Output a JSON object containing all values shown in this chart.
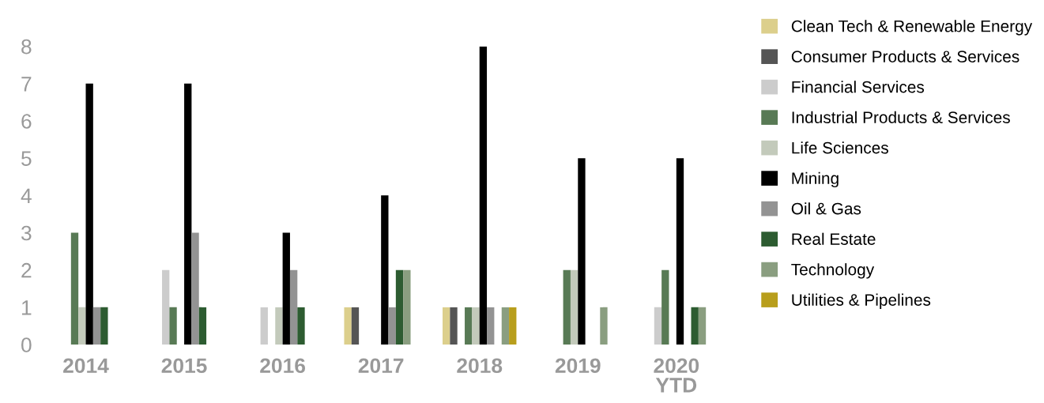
{
  "chart_data": {
    "type": "bar",
    "categories": [
      "2014",
      "2015",
      "2016",
      "2017",
      "2018",
      "2019",
      "2020\nYTD"
    ],
    "ylim": [
      0,
      8
    ],
    "yticks": [
      0,
      1,
      2,
      3,
      4,
      5,
      6,
      7,
      8
    ],
    "grid": false,
    "legend": "right",
    "series": [
      {
        "name": "Clean Tech & Renewable Energy",
        "color": "#dccf8c",
        "values": [
          0,
          0,
          0,
          1,
          1,
          0,
          0
        ]
      },
      {
        "name": "Consumer Products & Services",
        "color": "#555555",
        "values": [
          0,
          0,
          0,
          1,
          1,
          0,
          0
        ]
      },
      {
        "name": "Financial Services",
        "color": "#cccccc",
        "values": [
          0,
          2,
          1,
          0,
          0,
          0,
          1
        ]
      },
      {
        "name": "Industrial Products & Services",
        "color": "#587a55",
        "values": [
          3,
          1,
          0,
          0,
          1,
          2,
          2
        ]
      },
      {
        "name": "Life Sciences",
        "color": "#c3cabb",
        "values": [
          1,
          0,
          1,
          0,
          1,
          2,
          0
        ]
      },
      {
        "name": "Mining",
        "color": "#000000",
        "values": [
          7,
          7,
          3,
          4,
          8,
          5,
          5
        ]
      },
      {
        "name": "Oil & Gas",
        "color": "#939393",
        "values": [
          1,
          3,
          2,
          1,
          1,
          0,
          0
        ]
      },
      {
        "name": "Real Estate",
        "color": "#2d5c31",
        "values": [
          1,
          1,
          1,
          2,
          0,
          0,
          1
        ]
      },
      {
        "name": "Technology",
        "color": "#8a9e80",
        "values": [
          0,
          0,
          0,
          2,
          1,
          1,
          1
        ]
      },
      {
        "name": "Utilities & Pipelines",
        "color": "#b89e1c",
        "values": [
          0,
          0,
          0,
          0,
          1,
          0,
          0
        ]
      }
    ]
  }
}
